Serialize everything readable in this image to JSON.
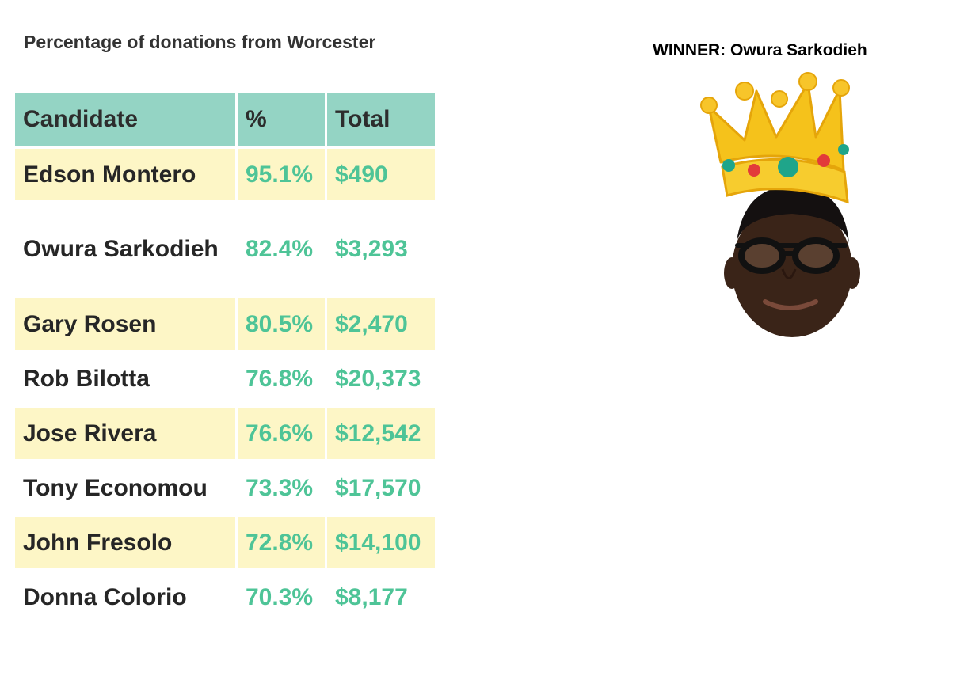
{
  "title": "Percentage of donations from Worcester",
  "winner_label": "WINNER: Owura Sarkodieh",
  "colors": {
    "header_bg": "#94d4c4",
    "stripe_bg": "#fdf6c6",
    "value_green": "#4ec497",
    "name_text": "#262626"
  },
  "icons": {
    "winner_image": "crowned-portrait",
    "crown": "crown-icon"
  },
  "chart_data": {
    "type": "table",
    "title": "Percentage of donations from Worcester",
    "columns": [
      "Candidate",
      "%",
      "Total"
    ],
    "rows": [
      {
        "candidate": "Edson Montero",
        "percent": "95.1%",
        "total": "$490"
      },
      {
        "candidate": "Owura Sarkodieh",
        "percent": "82.4%",
        "total": "$3,293"
      },
      {
        "candidate": "Gary Rosen",
        "percent": "80.5%",
        "total": "$2,470"
      },
      {
        "candidate": "Rob Bilotta",
        "percent": "76.8%",
        "total": "$20,373"
      },
      {
        "candidate": "Jose Rivera",
        "percent": "76.6%",
        "total": "$12,542"
      },
      {
        "candidate": "Tony Economou",
        "percent": "73.3%",
        "total": "$17,570"
      },
      {
        "candidate": "John Fresolo",
        "percent": "72.8%",
        "total": "$14,100"
      },
      {
        "candidate": "Donna Colorio",
        "percent": "70.3%",
        "total": "$8,177"
      }
    ]
  }
}
